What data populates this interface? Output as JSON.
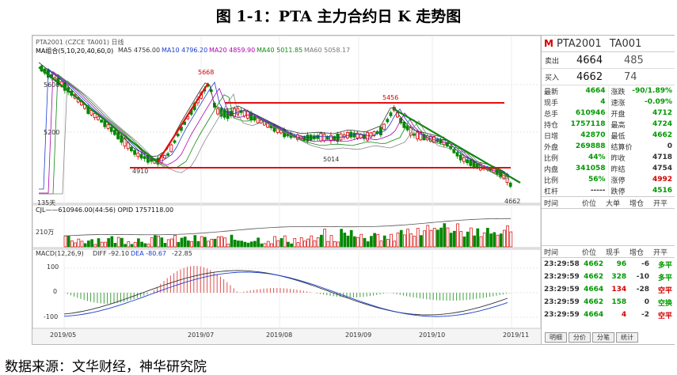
{
  "title": "图 1-1：PTA 主力合约日 K 走势图",
  "source": "数据来源：文华财经，神华研究院",
  "chart": {
    "header": "PTA2001 (CZCE TA001)  日线",
    "ma_labels": [
      {
        "text": "MA组合(5,10,20,40,60,0)",
        "color": "#333333"
      },
      {
        "text": "MA5 4756.00",
        "color": "#333333"
      },
      {
        "text": "MA10 4796.20",
        "color": "#1a3fd0"
      },
      {
        "text": "MA20 4859.90",
        "color": "#b000b0"
      },
      {
        "text": "MA40 5011.85",
        "color": "#118811"
      },
      {
        "text": "MA60 5058.17",
        "color": "#777777"
      }
    ],
    "price_ticks": [
      "5600",
      "5200"
    ],
    "annotations": {
      "high": "5668",
      "mid_high": "5456",
      "low": "4910",
      "mid": "5014",
      "last": "4662",
      "days": "135天"
    },
    "volume_label": "CJL——610946.00(44:56)    OPID 1757118.00",
    "volume_tick": "210万",
    "macd_labels": [
      {
        "text": "MACD(12,26,9)",
        "color": "#333333"
      },
      {
        "text": "DIFF -92.10",
        "color": "#333333"
      },
      {
        "text": "DEA -80.67",
        "color": "#1a3fd0"
      },
      {
        "text": "-22.85",
        "color": "#333333"
      }
    ],
    "macd_ticks": [
      "100",
      "0",
      "-100"
    ],
    "x_ticks": [
      "2019/05",
      "2019/07",
      "2019/08",
      "2019/09",
      "2019/10",
      "2019/11"
    ]
  },
  "panel": {
    "logo": "M",
    "symbol": "PTA2001",
    "code": "TA001",
    "ask": {
      "label": "卖出",
      "price": "4664",
      "vol": "485"
    },
    "bid": {
      "label": "买入",
      "price": "4662",
      "vol": "74"
    },
    "quotes_left": [
      {
        "k": "最新",
        "v": "4664",
        "c": "#009900"
      },
      {
        "k": "现手",
        "v": "4",
        "c": "#009900"
      },
      {
        "k": "总手",
        "v": "610946",
        "c": "#009900"
      },
      {
        "k": "持仓",
        "v": "1757118",
        "c": "#009900"
      },
      {
        "k": "日增",
        "v": "42870",
        "c": "#009900"
      },
      {
        "k": "外盘",
        "v": "269888",
        "c": "#009900"
      },
      {
        "k": "比例",
        "v": "44%",
        "c": "#009900"
      },
      {
        "k": "内盘",
        "v": "341058",
        "c": "#009900"
      },
      {
        "k": "比例",
        "v": "56%",
        "c": "#009900"
      },
      {
        "k": "杠杆",
        "v": "-----",
        "c": "#333333"
      }
    ],
    "quotes_right": [
      {
        "k": "涨跌",
        "v": "-90/1.89%",
        "c": "#009900"
      },
      {
        "k": "速涨",
        "v": "-0.09%",
        "c": "#009900"
      },
      {
        "k": "开盘",
        "v": "4712",
        "c": "#009900"
      },
      {
        "k": "最高",
        "v": "4724",
        "c": "#009900"
      },
      {
        "k": "最低",
        "v": "4662",
        "c": "#009900"
      },
      {
        "k": "结算价",
        "v": "0",
        "c": "#333333"
      },
      {
        "k": "昨收",
        "v": "4718",
        "c": "#333333"
      },
      {
        "k": "昨结",
        "v": "4754",
        "c": "#333333"
      },
      {
        "k": "涨停",
        "v": "4992",
        "c": "#d40000"
      },
      {
        "k": "跌停",
        "v": "4516",
        "c": "#009900"
      }
    ],
    "section_headers": [
      "时间",
      "价位",
      "大单",
      "增仓",
      "开平"
    ],
    "tick_headers": [
      "时间",
      "价位",
      "现手",
      "增仓",
      "开平"
    ],
    "ticks": [
      {
        "t": "23:29:58",
        "p": "4662",
        "v": "96",
        "vc": "#009900",
        "z": "-6",
        "o": "多平",
        "oc": "#009900"
      },
      {
        "t": "23:29:59",
        "p": "4662",
        "v": "328",
        "vc": "#009900",
        "z": "-10",
        "o": "多平",
        "oc": "#009900"
      },
      {
        "t": "23:29:59",
        "p": "4664",
        "v": "134",
        "vc": "#d40000",
        "z": "-28",
        "o": "空平",
        "oc": "#d40000"
      },
      {
        "t": "23:29:59",
        "p": "4662",
        "v": "158",
        "vc": "#009900",
        "z": "0",
        "o": "空换",
        "oc": "#009900"
      },
      {
        "t": "23:29:59",
        "p": "4664",
        "v": "4",
        "vc": "#d40000",
        "z": "-2",
        "o": "空平",
        "oc": "#d40000"
      }
    ],
    "tabs": [
      "明细",
      "分价",
      "分笔",
      "统计"
    ]
  }
}
